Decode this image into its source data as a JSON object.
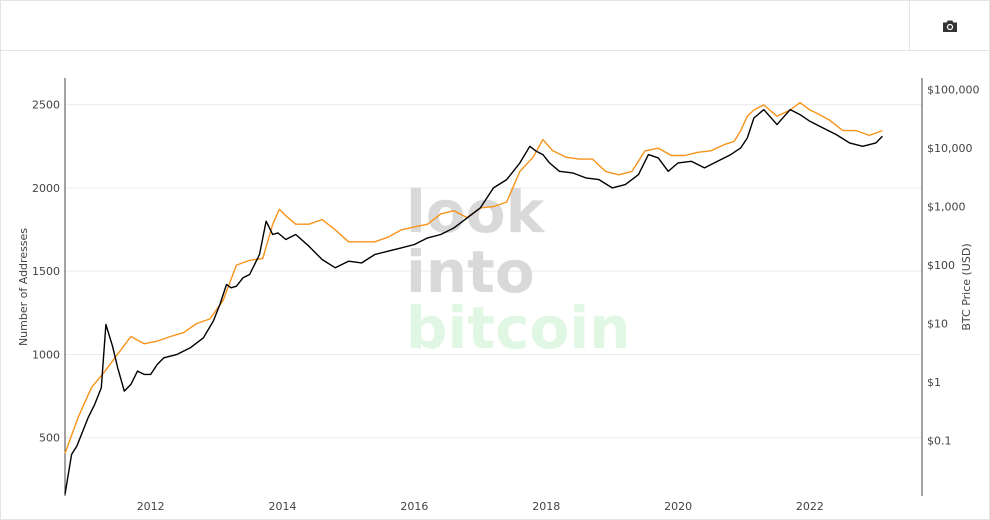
{
  "toolbar": {
    "snapshot_icon": "camera-icon"
  },
  "watermark": {
    "line1": "look",
    "line2": "into",
    "line3": "bitcoin",
    "color_gray": "#d9d9d9",
    "color_green": "#e0f7e3"
  },
  "chart_data": {
    "type": "line",
    "title": "",
    "xlabel": "",
    "ylabel_left": "Number of Addresses",
    "ylabel_right": "BTC Price (USD)",
    "xlim": [
      2010.7,
      2023.7
    ],
    "x_ticks": [
      2012,
      2014,
      2016,
      2018,
      2020,
      2022
    ],
    "x_tick_labels": [
      "2012",
      "2014",
      "2016",
      "2018",
      "2020",
      "2022"
    ],
    "ylim_left": [
      150,
      2660
    ],
    "y_ticks_left": [
      500,
      1000,
      1500,
      2000,
      2500
    ],
    "y_tick_labels_left": [
      "500",
      "1000",
      "1500",
      "2000",
      "2500"
    ],
    "ylim_right_log10": [
      -1.95,
      5.2
    ],
    "y_ticks_right_log10": [
      -1,
      0,
      1,
      2,
      3,
      4,
      5
    ],
    "y_tick_labels_right": [
      "$0.1",
      "$1",
      "$10",
      "$100",
      "$1,000",
      "$10,000",
      "$100,000"
    ],
    "grid": true,
    "series": [
      {
        "name": "Number of Addresses",
        "axis": "left",
        "color": "#000000",
        "x": [
          2010.7,
          2010.8,
          2010.88,
          2010.95,
          2011.05,
          2011.15,
          2011.25,
          2011.32,
          2011.42,
          2011.5,
          2011.6,
          2011.7,
          2011.8,
          2011.9,
          2012.0,
          2012.1,
          2012.2,
          2012.4,
          2012.6,
          2012.8,
          2012.95,
          2013.05,
          2013.15,
          2013.22,
          2013.3,
          2013.4,
          2013.5,
          2013.65,
          2013.75,
          2013.85,
          2013.93,
          2014.05,
          2014.2,
          2014.4,
          2014.6,
          2014.8,
          2015.0,
          2015.2,
          2015.4,
          2015.6,
          2015.8,
          2016.0,
          2016.2,
          2016.4,
          2016.6,
          2016.8,
          2017.0,
          2017.2,
          2017.4,
          2017.6,
          2017.75,
          2017.85,
          2017.95,
          2018.05,
          2018.2,
          2018.4,
          2018.6,
          2018.8,
          2019.0,
          2019.2,
          2019.4,
          2019.55,
          2019.7,
          2019.85,
          2020.0,
          2020.2,
          2020.4,
          2020.6,
          2020.8,
          2020.95,
          2021.05,
          2021.15,
          2021.3,
          2021.5,
          2021.7,
          2021.85,
          2022.0,
          2022.2,
          2022.4,
          2022.6,
          2022.8,
          2023.0,
          2023.1
        ],
        "values": [
          160,
          400,
          450,
          520,
          620,
          700,
          800,
          1180,
          1050,
          920,
          780,
          820,
          900,
          880,
          880,
          940,
          980,
          1000,
          1040,
          1100,
          1200,
          1300,
          1420,
          1400,
          1410,
          1460,
          1480,
          1600,
          1800,
          1720,
          1730,
          1690,
          1720,
          1650,
          1570,
          1520,
          1560,
          1550,
          1600,
          1620,
          1640,
          1660,
          1700,
          1720,
          1760,
          1820,
          1880,
          2000,
          2050,
          2150,
          2250,
          2220,
          2200,
          2150,
          2100,
          2090,
          2060,
          2050,
          2000,
          2020,
          2080,
          2200,
          2180,
          2100,
          2150,
          2160,
          2120,
          2160,
          2200,
          2240,
          2300,
          2420,
          2470,
          2380,
          2470,
          2440,
          2400,
          2360,
          2320,
          2270,
          2250,
          2270,
          2310
        ]
      },
      {
        "name": "BTC Price",
        "axis": "right",
        "color": "#f7931a",
        "x": [
          2010.7,
          2010.9,
          2011.1,
          2011.3,
          2011.5,
          2011.7,
          2011.9,
          2012.1,
          2012.3,
          2012.5,
          2012.7,
          2012.9,
          2013.1,
          2013.3,
          2013.5,
          2013.7,
          2013.85,
          2013.95,
          2014.05,
          2014.2,
          2014.4,
          2014.6,
          2014.8,
          2015.0,
          2015.2,
          2015.4,
          2015.6,
          2015.8,
          2016.0,
          2016.2,
          2016.4,
          2016.6,
          2016.8,
          2017.0,
          2017.2,
          2017.4,
          2017.6,
          2017.8,
          2017.95,
          2018.1,
          2018.3,
          2018.5,
          2018.7,
          2018.9,
          2019.1,
          2019.3,
          2019.5,
          2019.7,
          2019.9,
          2020.1,
          2020.3,
          2020.5,
          2020.7,
          2020.85,
          2020.95,
          2021.05,
          2021.15,
          2021.3,
          2021.5,
          2021.7,
          2021.85,
          2022.0,
          2022.1,
          2022.3,
          2022.5,
          2022.7,
          2022.9,
          2023.1
        ],
        "values": [
          0.06,
          0.25,
          0.8,
          1.5,
          3,
          6,
          4.5,
          5,
          6,
          7,
          10,
          12,
          25,
          100,
          120,
          130,
          500,
          900,
          700,
          500,
          500,
          600,
          400,
          250,
          250,
          250,
          300,
          400,
          450,
          500,
          750,
          850,
          650,
          950,
          1000,
          1200,
          4000,
          7000,
          14000,
          9000,
          7000,
          6500,
          6500,
          4000,
          3500,
          4000,
          9000,
          10000,
          7500,
          7500,
          8500,
          9000,
          11500,
          13000,
          20000,
          35000,
          45000,
          55000,
          35000,
          45000,
          60000,
          45000,
          40000,
          30000,
          20000,
          20000,
          16500,
          20000
        ]
      }
    ]
  }
}
